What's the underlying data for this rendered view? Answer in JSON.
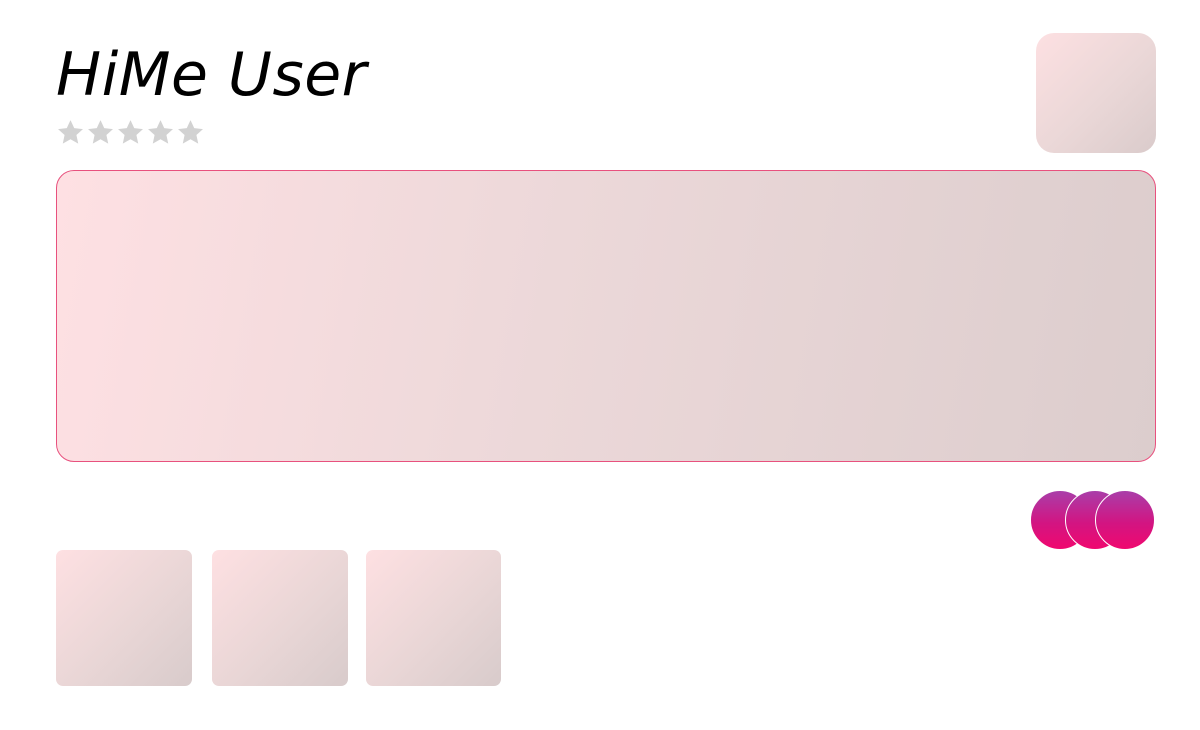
{
  "profile": {
    "name": "HiMe User",
    "rating": {
      "value": 0,
      "max": 5,
      "icon": "star-icon",
      "empty_color": "#d2d2d2",
      "filled_color": "#ffc107"
    }
  },
  "colors": {
    "banner_border": "#e8517e",
    "tile_gradient_start": "#fee0e2",
    "tile_gradient_end": "#d8cbcb",
    "circle_gradient_top": "#a93ea9",
    "circle_gradient_bottom": "#f0086f"
  },
  "followers": {
    "avatar_count": 3
  },
  "gallery": {
    "thumbnail_count": 3
  }
}
